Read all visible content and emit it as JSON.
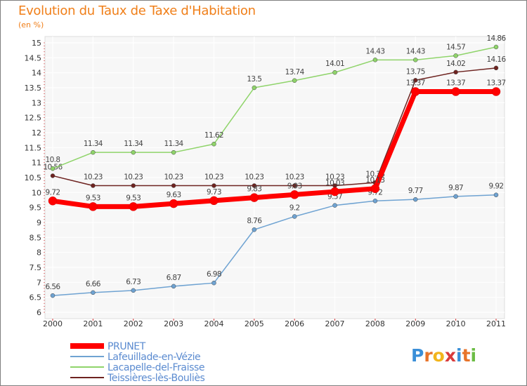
{
  "title": "Evolution du Taux de Taxe d'Habitation",
  "unit": "(en %)",
  "logo": [
    "P",
    "r",
    "o",
    "x",
    "i",
    "t",
    "i"
  ],
  "logo_colors": [
    "#3a8fd8",
    "#e8742a",
    "#f2b51c",
    "#d93b3b",
    "#3a8fd8",
    "#e8742a",
    "#6cbd45"
  ],
  "chart_data": {
    "type": "line",
    "title": "Evolution du Taux de Taxe d'Habitation",
    "ylabel": "(en %)",
    "xlabel": "",
    "ylim": [
      6,
      15
    ],
    "yticks": [
      "6",
      "6.5",
      "7",
      "7.5",
      "8",
      "8.5",
      "9",
      "9.5",
      "10",
      "10.5",
      "11",
      "11.5",
      "12",
      "12.5",
      "13",
      "13.5",
      "14",
      "14.5",
      "15"
    ],
    "categories": [
      "2000",
      "2001",
      "2002",
      "2003",
      "2004",
      "2005",
      "2006",
      "2007",
      "2008",
      "2009",
      "2010",
      "2011"
    ],
    "legend_position": "bottom-left",
    "grid": true,
    "series": [
      {
        "name": "Teissières-lès-Bouliès",
        "color": "#6e2320",
        "values": [
          10.56,
          10.23,
          10.23,
          10.23,
          10.23,
          10.23,
          10.23,
          10.23,
          10.33,
          13.75,
          14.02,
          14.16
        ],
        "labels": [
          "10.56",
          "10.23",
          "10.23",
          "10.23",
          "10.23",
          "10.23",
          "10.23",
          "10.23",
          "10.33",
          "13.75",
          "14.02",
          "14.16"
        ]
      },
      {
        "name": "Lacapelle-del-Fraisse",
        "color": "#8fd46a",
        "values": [
          10.8,
          11.34,
          11.34,
          11.34,
          11.62,
          13.5,
          13.74,
          14.01,
          14.43,
          14.43,
          14.57,
          14.86
        ],
        "labels": [
          "10.8",
          "11.34",
          "11.34",
          "11.34",
          "11.62",
          "13.5",
          "13.74",
          "14.01",
          "14.43",
          "14.43",
          "14.57",
          "14.86"
        ]
      },
      {
        "name": "Lafeuillade-en-Vézie",
        "color": "#6fa3d2",
        "values": [
          6.56,
          6.66,
          6.73,
          6.87,
          6.98,
          8.76,
          9.2,
          9.57,
          9.72,
          9.77,
          9.87,
          9.92
        ],
        "labels": [
          "6.56",
          "6.66",
          "6.73",
          "6.87",
          "6.98",
          "8.76",
          "9.2",
          "9.57",
          "9.72",
          "9.77",
          "9.87",
          "9.92"
        ]
      },
      {
        "name": "PRUNET",
        "color": "#ff0000",
        "values": [
          9.72,
          9.53,
          9.53,
          9.63,
          9.73,
          9.83,
          9.93,
          10.03,
          10.13,
          13.37,
          13.37,
          13.37
        ],
        "labels": [
          "9.72",
          "9.53",
          "9.53",
          "9.63",
          "9.73",
          "9.83",
          "9.93",
          "10.03",
          "10.13",
          "13.37",
          "13.37",
          "13.37"
        ]
      }
    ],
    "legend": [
      "PRUNET",
      "Lafeuillade-en-Vézie",
      "Lacapelle-del-Fraisse",
      "Teissières-lès-Bouliès"
    ]
  }
}
